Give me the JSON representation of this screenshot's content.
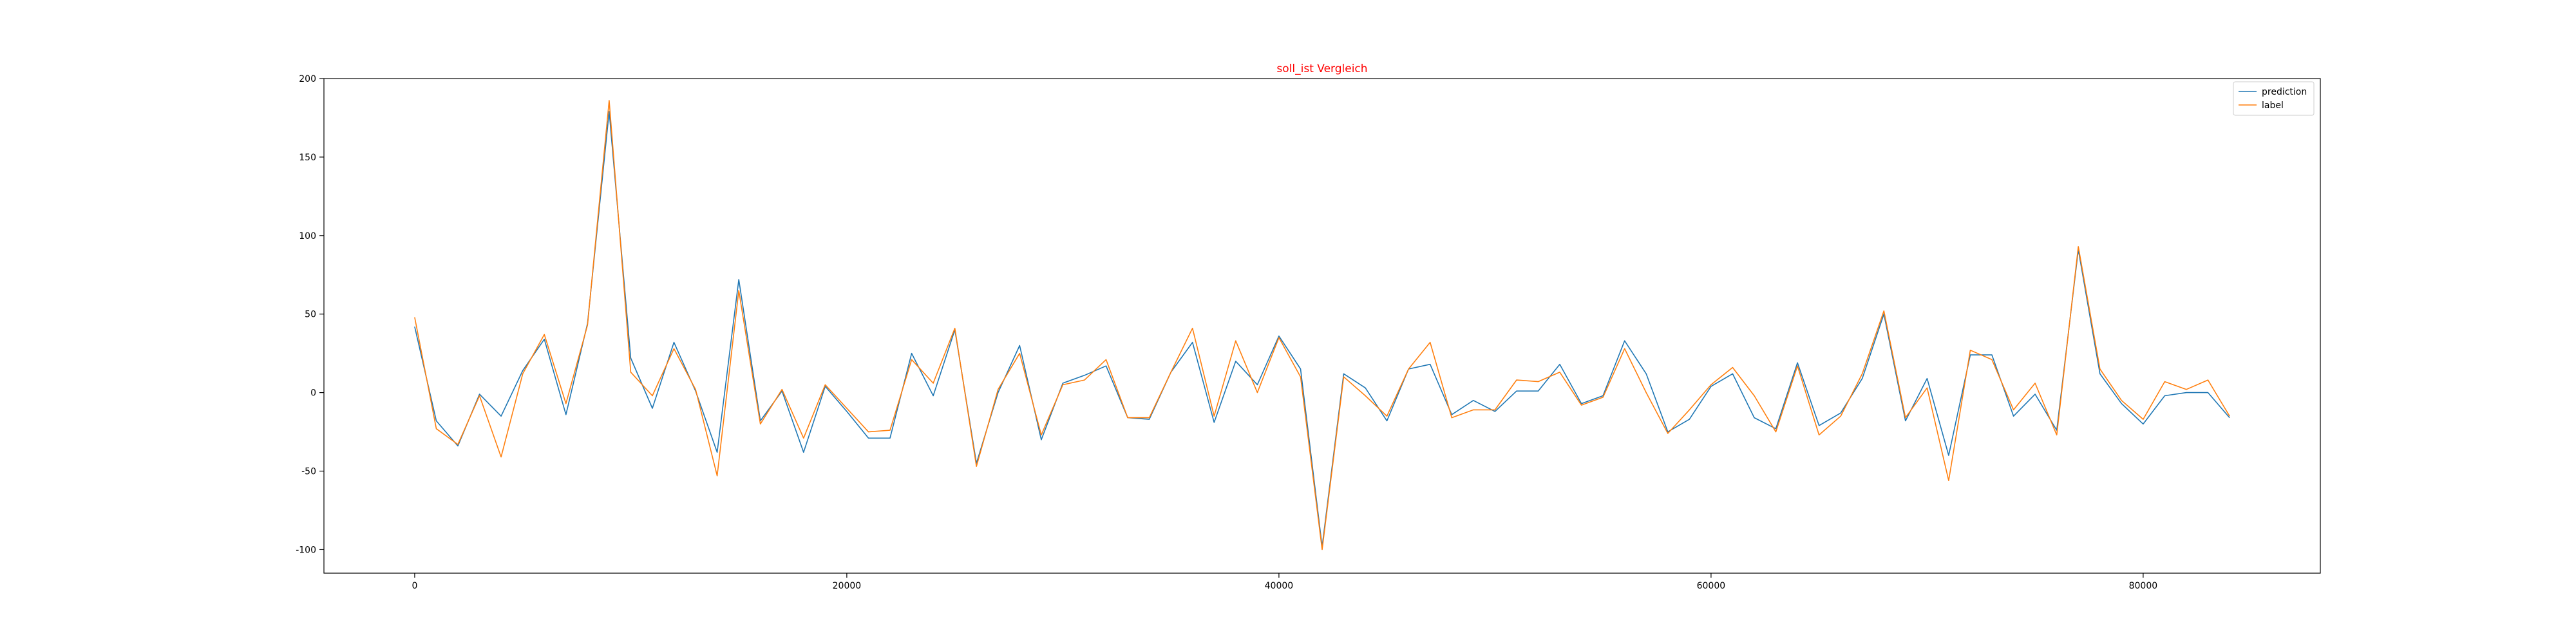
{
  "chart_data": {
    "type": "line",
    "title": "soll_ist Vergleich",
    "title_color": "#ff0000",
    "xlabel": "",
    "ylabel": "",
    "xlim": [
      -4200,
      88200
    ],
    "ylim": [
      -115,
      200
    ],
    "xticks": [
      0,
      20000,
      40000,
      60000,
      80000
    ],
    "yticks": [
      -100,
      -50,
      0,
      50,
      100,
      150,
      200
    ],
    "grid": false,
    "legend_position": "top-right",
    "x": [
      0,
      1000,
      2000,
      3000,
      4000,
      5000,
      6000,
      7000,
      8000,
      9000,
      10000,
      11000,
      12000,
      13000,
      14000,
      15000,
      16000,
      17000,
      18000,
      19000,
      20000,
      21000,
      22000,
      23000,
      24000,
      25000,
      26000,
      27000,
      28000,
      29000,
      30000,
      31000,
      32000,
      33000,
      34000,
      35000,
      36000,
      37000,
      38000,
      39000,
      40000,
      41000,
      42000,
      43000,
      44000,
      45000,
      46000,
      47000,
      48000,
      49000,
      50000,
      51000,
      52000,
      53000,
      54000,
      55000,
      56000,
      57000,
      58000,
      59000,
      60000,
      61000,
      62000,
      63000,
      64000,
      65000,
      66000,
      67000,
      68000,
      69000,
      70000,
      71000,
      72000,
      73000,
      74000,
      75000,
      76000,
      77000,
      78000,
      79000,
      80000,
      81000,
      82000,
      83000,
      84000
    ],
    "series": [
      {
        "name": "prediction",
        "color": "#1f77b4",
        "values": [
          42,
          -18,
          -34,
          -1,
          -15,
          14,
          34,
          -14,
          44,
          179,
          22,
          -10,
          32,
          1,
          -38,
          72,
          -18,
          1,
          -38,
          4,
          -12,
          -29,
          -29,
          25,
          -2,
          40,
          -45,
          0,
          30,
          -30,
          6,
          11,
          17,
          -16,
          -17,
          13,
          32,
          -19,
          20,
          5,
          36,
          15,
          -98,
          12,
          3,
          -18,
          15,
          18,
          -14,
          -5,
          -12,
          1,
          1,
          18,
          -7,
          -2,
          33,
          12,
          -25,
          -17,
          4,
          12,
          -16,
          -23,
          19,
          -21,
          -13,
          9,
          50,
          -18,
          9,
          -40,
          24,
          24,
          -15,
          -1,
          -24,
          91,
          12,
          -7,
          -20,
          -2,
          0,
          0,
          -16
        ]
      },
      {
        "name": "label",
        "color": "#ff7f0e",
        "values": [
          48,
          -23,
          -33,
          -2,
          -41,
          12,
          37,
          -7,
          43,
          186,
          13,
          -2,
          28,
          2,
          -53,
          65,
          -20,
          2,
          -29,
          5,
          -10,
          -25,
          -24,
          21,
          6,
          41,
          -47,
          2,
          25,
          -27,
          5,
          8,
          21,
          -16,
          -16,
          13,
          41,
          -15,
          33,
          0,
          35,
          10,
          -100,
          10,
          -2,
          -15,
          15,
          32,
          -16,
          -11,
          -11,
          8,
          7,
          13,
          -8,
          -3,
          28,
          0,
          -26,
          -11,
          5,
          16,
          -2,
          -25,
          17,
          -27,
          -15,
          12,
          52,
          -16,
          3,
          -56,
          27,
          21,
          -11,
          6,
          -27,
          93,
          15,
          -5,
          -17,
          7,
          2,
          8,
          -15
        ]
      }
    ]
  }
}
